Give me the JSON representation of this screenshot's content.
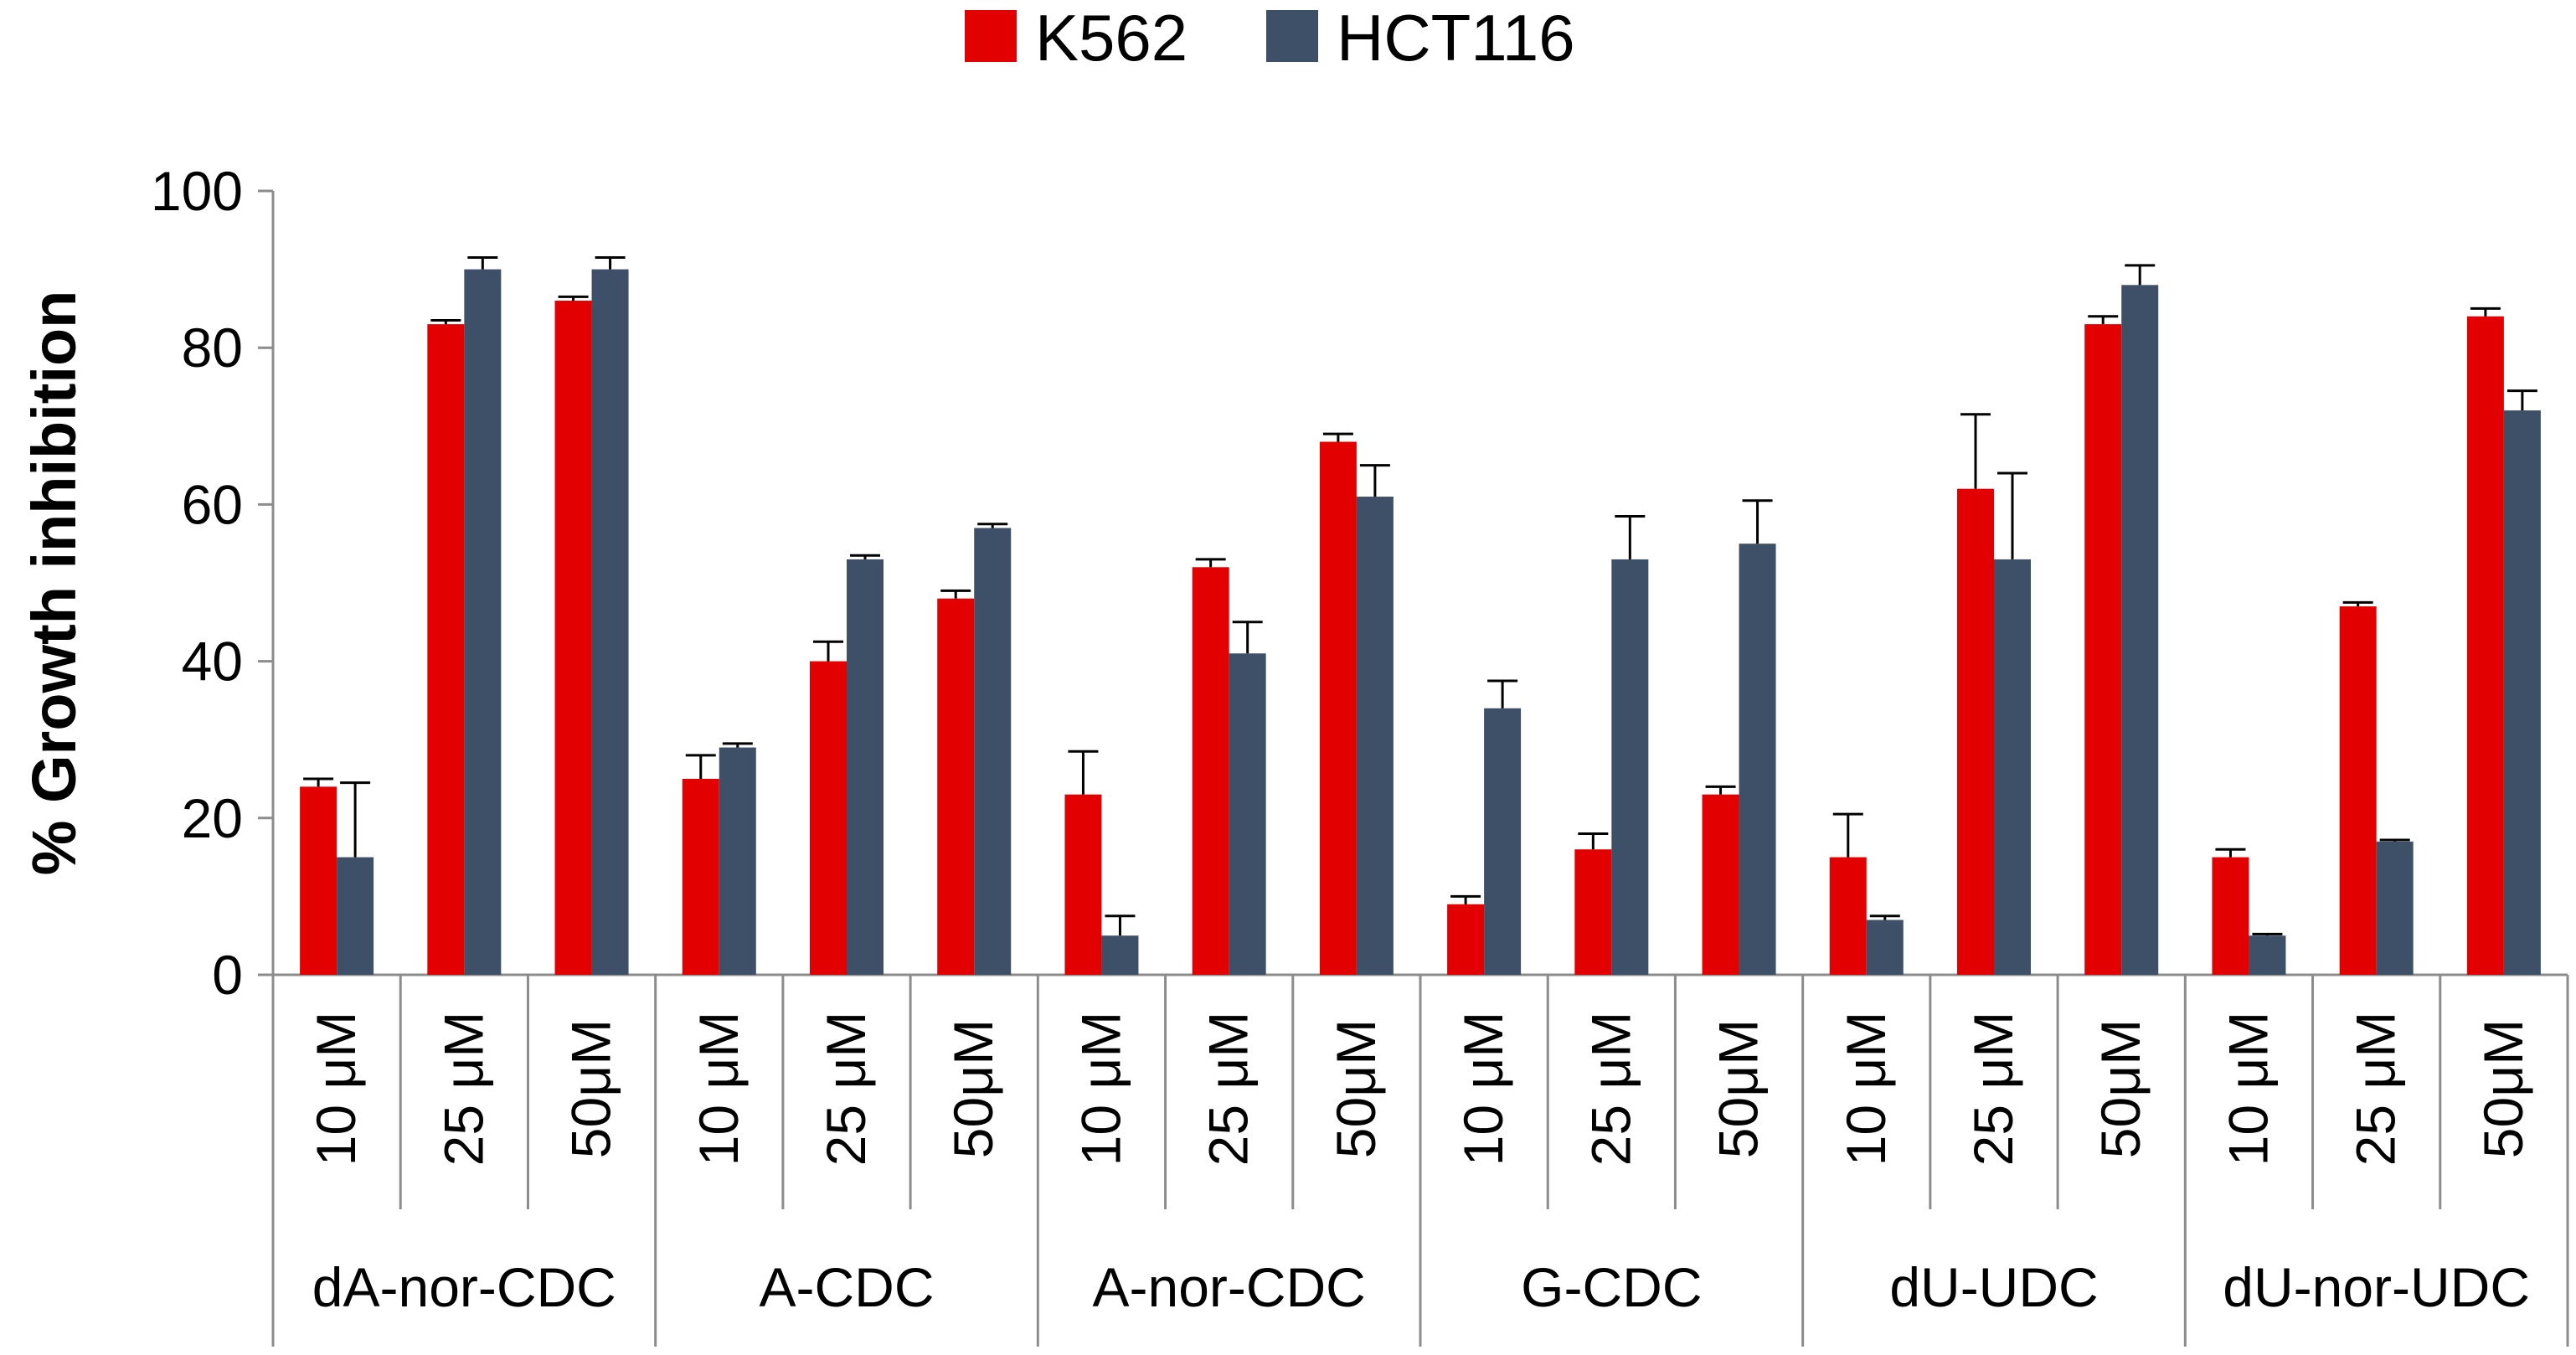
{
  "chart_data": {
    "type": "bar",
    "title": "",
    "xlabel": "",
    "ylabel": "% Growth inhibition",
    "ylim": [
      0,
      100
    ],
    "yticks": [
      0,
      20,
      40,
      60,
      80,
      100
    ],
    "legend_position": "top-center",
    "groups": [
      {
        "name": "dA-nor-CDC",
        "categories": [
          "10 μM",
          "25 μM",
          "50μM"
        ]
      },
      {
        "name": "A-CDC",
        "categories": [
          "10 μM",
          "25 μM",
          "50μM"
        ]
      },
      {
        "name": "A-nor-CDC",
        "categories": [
          "10 μM",
          "25 μM",
          "50μM"
        ]
      },
      {
        "name": "G-CDC",
        "categories": [
          "10 μM",
          "25 μM",
          "50μM"
        ]
      },
      {
        "name": "dU-UDC",
        "categories": [
          "10 μM",
          "25 μM",
          "50μM"
        ]
      },
      {
        "name": "dU-nor-UDC",
        "categories": [
          "10 μM",
          "25 μM",
          "50μM"
        ]
      }
    ],
    "series": [
      {
        "name": "K562",
        "color": "#e30000",
        "values": [
          24,
          83,
          86,
          25,
          40,
          48,
          23,
          52,
          68,
          9,
          16,
          23,
          15,
          62,
          83,
          15,
          47,
          84
        ],
        "errors": [
          1,
          0.5,
          0.5,
          3,
          2.5,
          1,
          5.5,
          1,
          1,
          1,
          2,
          1,
          5.5,
          9.5,
          1,
          1,
          0.5,
          1
        ]
      },
      {
        "name": "HCT116",
        "color": "#3d5068",
        "values": [
          15,
          90,
          90,
          29,
          53,
          57,
          5,
          41,
          61,
          34,
          53,
          55,
          7,
          53,
          88,
          5,
          17,
          72
        ],
        "errors": [
          9.5,
          1.5,
          1.5,
          0.5,
          0.5,
          0.5,
          2.5,
          4,
          4,
          3.5,
          5.5,
          5.5,
          0.5,
          11,
          2.5,
          0.2,
          0.2,
          2.5
        ]
      }
    ]
  }
}
